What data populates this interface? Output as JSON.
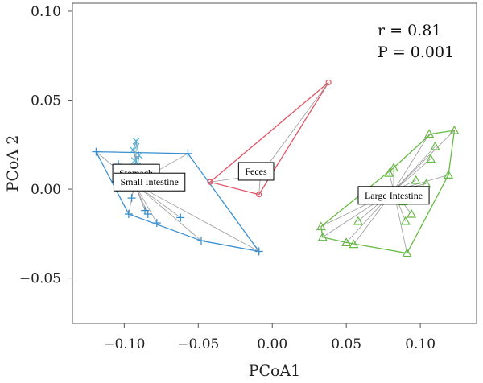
{
  "chart_data": {
    "type": "scatter",
    "title": "",
    "xlabel": "PCoA1",
    "ylabel": "PCoA 2",
    "xlim": [
      -0.135,
      0.138
    ],
    "ylim": [
      -0.0755,
      0.1045
    ],
    "xticks": [
      -0.1,
      -0.05,
      0.0,
      0.05,
      0.1
    ],
    "xtick_labels": [
      "−0.10",
      "−0.05",
      "0.00",
      "0.05",
      "0.10"
    ],
    "yticks": [
      -0.05,
      0.0,
      0.05,
      0.1
    ],
    "ytick_labels": [
      "−0.05",
      "0.00",
      "0.05",
      "0.10"
    ],
    "grid": false,
    "legend": "none",
    "annotations": {
      "r_text": "r = 0.81",
      "p_text": "P = 0.001"
    },
    "series": [
      {
        "name": "Stomach",
        "marker": "x",
        "color": "#5ab0d8",
        "centroid": [
          -0.092,
          0.018
        ],
        "label_anchor": [
          -0.092,
          0.009
        ],
        "points": [
          [
            -0.092,
            0.027
          ],
          [
            -0.094,
            0.022
          ],
          [
            -0.09,
            0.019
          ],
          [
            -0.093,
            0.016
          ],
          [
            -0.091,
            0.013
          ]
        ],
        "hull": [
          [
            -0.092,
            0.027
          ],
          [
            -0.09,
            0.019
          ],
          [
            -0.091,
            0.013
          ],
          [
            -0.094,
            0.022
          ]
        ]
      },
      {
        "name": "Small Intestine",
        "marker": "+",
        "color": "#3a8fd0",
        "centroid": [
          -0.093,
          0.003
        ],
        "label_anchor": [
          -0.083,
          0.004
        ],
        "points": [
          [
            -0.119,
            0.021
          ],
          [
            -0.057,
            0.02
          ],
          [
            -0.104,
            0.014
          ],
          [
            -0.098,
            0.008
          ],
          [
            -0.105,
            0.003
          ],
          [
            -0.095,
            -0.005
          ],
          [
            -0.086,
            -0.012
          ],
          [
            -0.084,
            -0.014
          ],
          [
            -0.097,
            -0.014
          ],
          [
            -0.078,
            -0.019
          ],
          [
            -0.062,
            -0.016
          ],
          [
            -0.048,
            -0.029
          ],
          [
            -0.009,
            -0.035
          ]
        ],
        "hull": [
          [
            -0.119,
            0.021
          ],
          [
            -0.057,
            0.02
          ],
          [
            -0.009,
            -0.035
          ],
          [
            -0.048,
            -0.029
          ],
          [
            -0.097,
            -0.014
          ]
        ]
      },
      {
        "name": "Feces",
        "marker": "o",
        "color": "#e05566",
        "centroid": [
          -0.008,
          0.008
        ],
        "label_anchor": [
          -0.011,
          0.01
        ],
        "points": [
          [
            0.038,
            0.06
          ],
          [
            -0.042,
            0.004
          ],
          [
            -0.009,
            -0.003
          ]
        ],
        "hull": [
          [
            0.038,
            0.06
          ],
          [
            -0.042,
            0.004
          ],
          [
            -0.009,
            -0.003
          ]
        ]
      },
      {
        "name": "Large Intestine",
        "marker": "triangle",
        "color": "#66bb44",
        "centroid": [
          0.082,
          -0.001
        ],
        "label_anchor": [
          0.082,
          -0.0035
        ],
        "points": [
          [
            0.123,
            0.033
          ],
          [
            0.106,
            0.031
          ],
          [
            0.11,
            0.024
          ],
          [
            0.107,
            0.017
          ],
          [
            0.082,
            0.012
          ],
          [
            0.079,
            0.009
          ],
          [
            0.119,
            0.008
          ],
          [
            0.097,
            0.005
          ],
          [
            0.104,
            0.003
          ],
          [
            0.088,
            -0.007
          ],
          [
            0.094,
            -0.014
          ],
          [
            0.09,
            -0.018
          ],
          [
            0.058,
            -0.018
          ],
          [
            0.033,
            -0.021
          ],
          [
            0.034,
            -0.027
          ],
          [
            0.05,
            -0.03
          ],
          [
            0.055,
            -0.031
          ],
          [
            0.091,
            -0.036
          ]
        ],
        "hull": [
          [
            0.123,
            0.033
          ],
          [
            0.107,
            0.031
          ],
          [
            0.082,
            0.012
          ],
          [
            0.033,
            -0.021
          ],
          [
            0.034,
            -0.027
          ],
          [
            0.05,
            -0.03
          ],
          [
            0.091,
            -0.036
          ],
          [
            0.119,
            0.008
          ]
        ]
      }
    ]
  }
}
